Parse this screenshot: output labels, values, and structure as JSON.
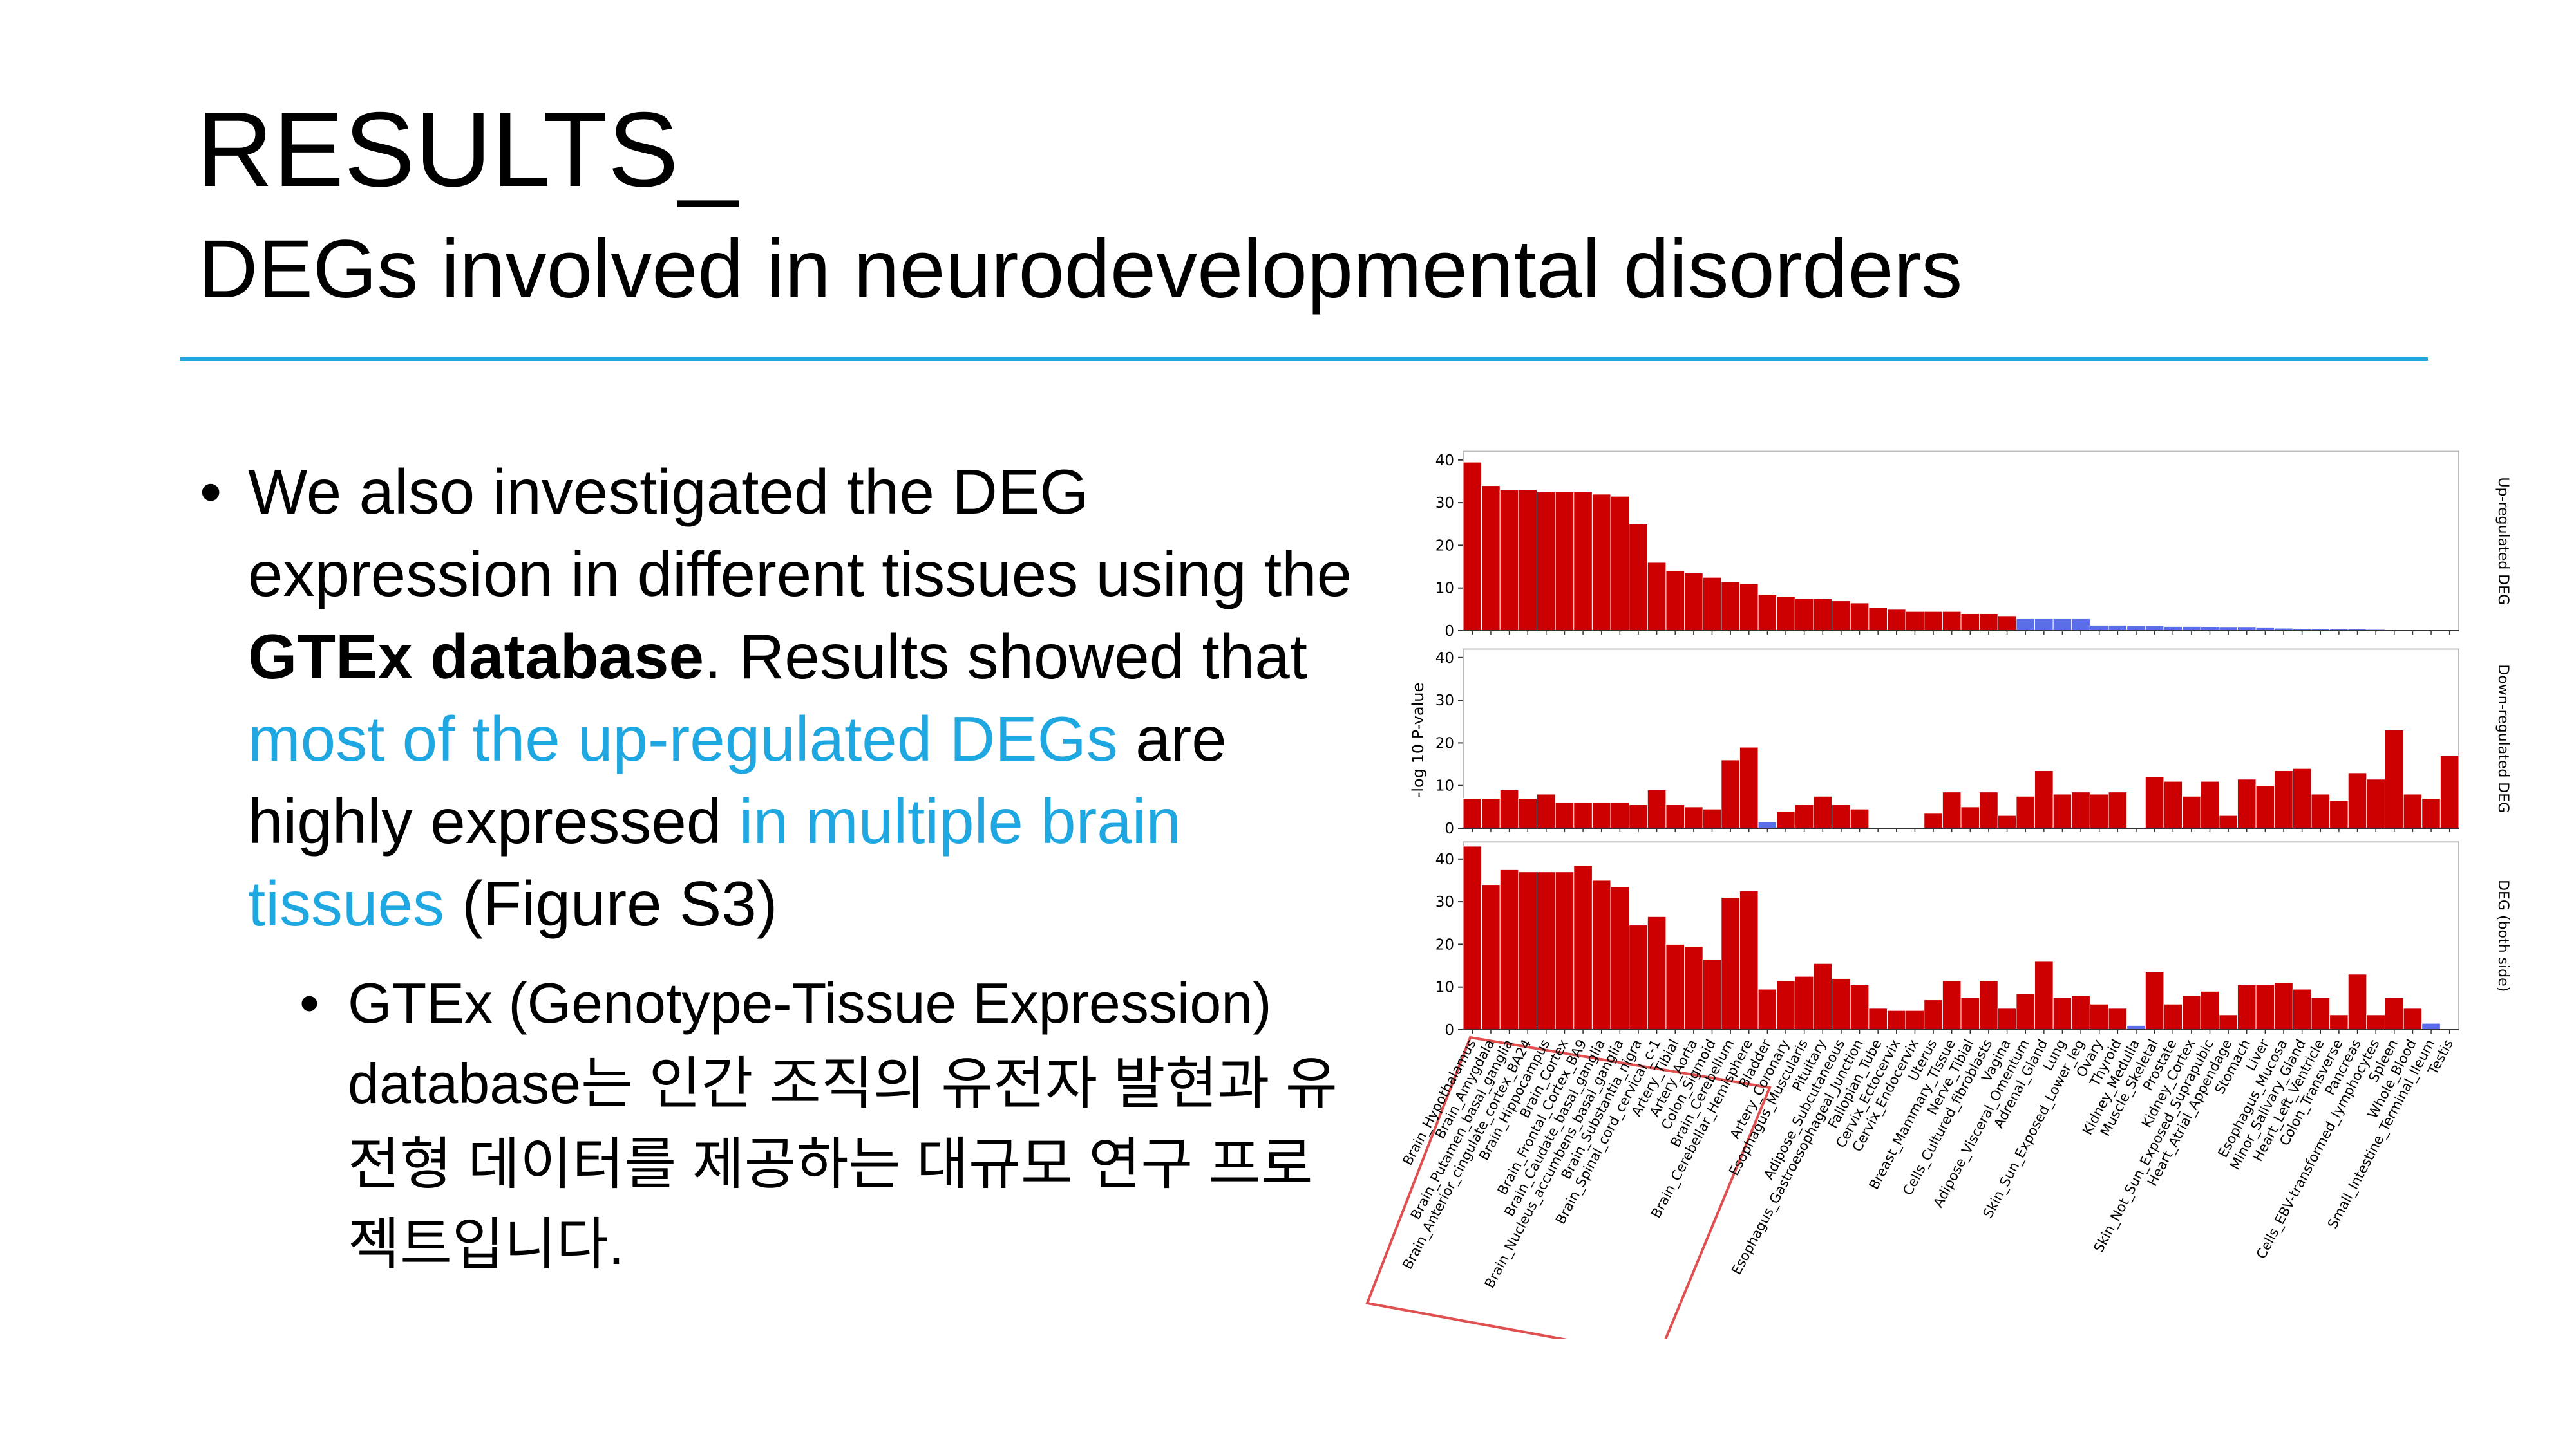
{
  "header": {
    "title": "RESULTS_",
    "subtitle": "DEGs involved in neurodevelopmental disorders"
  },
  "bullets": [
    {
      "parts": [
        {
          "text": "We also investigated the DEG expression in different tissues using the ",
          "style": "normal"
        },
        {
          "text": "GTEx database",
          "style": "bold"
        },
        {
          "text": ". Results showed that ",
          "style": "normal"
        },
        {
          "text": "most of the up-regulated DEGs",
          "style": "highlight"
        },
        {
          "text": " are highly expressed ",
          "style": "normal"
        },
        {
          "text": "in multiple brain tissues",
          "style": "highlight"
        },
        {
          "text": " (Figure S3)",
          "style": "normal"
        }
      ],
      "sub": [
        "GTEx (Genotype-Tissue Expression) database는 인간 조직의 유전자 발현과 유전형 데이터를 제공하는 대규모 연구 프로젝트입니다."
      ]
    }
  ],
  "figure": {
    "y_label": "-log 10 P-value",
    "categories": [
      "Brain_Hypothalamus",
      "Brain_Amygdala",
      "Brain_Putamen_basal_ganglia",
      "Brain_Anterior_cingulate_cortex_BA24",
      "Brain_Hippocampus",
      "Brain_Cortex",
      "Brain_Frontal_Cortex_BA9",
      "Brain_Caudate_basal_ganglia",
      "Brain_Nucleus_accumbens_basal_ganglia",
      "Brain_Substantia_nigra",
      "Brain_Spinal_cord_cervical_c-1",
      "Artery_Tibial",
      "Artery_Aorta",
      "Colon_Sigmoid",
      "Brain_Cerebellum",
      "Brain_Cerebellar_Hemisphere",
      "Bladder",
      "Artery_Coronary",
      "Esophagus_Muscularis",
      "Pituitary",
      "Adipose_Subcutaneous",
      "Esophagus_Gastroesophageal_Junction",
      "Fallopian_Tube",
      "Cervix_Ectocervix",
      "Cervix_Endocervix",
      "Uterus",
      "Breast_Mammary_Tissue",
      "Nerve_Tibial",
      "Cells_Cultured_fibroblasts",
      "Vagina",
      "Adipose_Visceral_Omentum",
      "Adrenal_Gland",
      "Lung",
      "Skin_Sun_Exposed_Lower_leg",
      "Ovary",
      "Thyroid",
      "Kidney_Medulla",
      "Muscle_Skeletal",
      "Prostate",
      "Kidney_Cortex",
      "Skin_Not_Sun_Exposed_Suprapubic",
      "Heart_Atrial_Appendage",
      "Stomach",
      "Liver",
      "Esophagus_Mucosa",
      "Minor_Salivary_Gland",
      "Heart_Left_Ventricle",
      "Colon_Transverse",
      "Pancreas",
      "Cells_EBV-transformed_lymphocytes",
      "Spleen",
      "Whole_Blood",
      "Small_Intestine_Terminal_Ileum",
      "Testis"
    ],
    "charts": [
      {
        "type": "bar",
        "title": "Up-regulated DEG",
        "ylim": [
          0,
          42
        ],
        "yticks": [
          0,
          10,
          20,
          30,
          40
        ],
        "values": [
          39.5,
          34,
          33,
          33,
          32.5,
          32.5,
          32.5,
          32,
          31.5,
          25,
          16,
          14,
          13.5,
          12.5,
          11.5,
          11,
          8.5,
          8,
          7.5,
          7.5,
          7,
          6.5,
          5.5,
          5,
          4.5,
          4.5,
          4.5,
          4,
          4,
          3.5,
          2.8,
          2.8,
          2.8,
          2.8,
          1.3,
          1.3,
          1.2,
          1.2,
          1,
          1,
          0.9,
          0.8,
          0.8,
          0.7,
          0.6,
          0.5,
          0.5,
          0.4,
          0.4,
          0.3,
          0.2,
          0.2,
          0.1,
          0.1
        ],
        "colors": [
          "#cc0000",
          "#cc0000",
          "#cc0000",
          "#cc0000",
          "#cc0000",
          "#cc0000",
          "#cc0000",
          "#cc0000",
          "#cc0000",
          "#cc0000",
          "#cc0000",
          "#cc0000",
          "#cc0000",
          "#cc0000",
          "#cc0000",
          "#cc0000",
          "#cc0000",
          "#cc0000",
          "#cc0000",
          "#cc0000",
          "#cc0000",
          "#cc0000",
          "#cc0000",
          "#cc0000",
          "#cc0000",
          "#cc0000",
          "#cc0000",
          "#cc0000",
          "#cc0000",
          "#cc0000",
          "#5b6ee8",
          "#5b6ee8",
          "#5b6ee8",
          "#5b6ee8",
          "#5b6ee8",
          "#5b6ee8",
          "#5b6ee8",
          "#5b6ee8",
          "#5b6ee8",
          "#5b6ee8",
          "#5b6ee8",
          "#5b6ee8",
          "#5b6ee8",
          "#5b6ee8",
          "#5b6ee8",
          "#5b6ee8",
          "#5b6ee8",
          "#5b6ee8",
          "#5b6ee8",
          "#5b6ee8",
          "#5b6ee8",
          "#5b6ee8",
          "#5b6ee8",
          "#5b6ee8"
        ]
      },
      {
        "type": "bar",
        "title": "Down-regulated DEG",
        "ylim": [
          0,
          42
        ],
        "yticks": [
          0,
          10,
          20,
          30,
          40
        ],
        "values": [
          7,
          7,
          9,
          7,
          8,
          6,
          6,
          6,
          6,
          5.5,
          9,
          5.5,
          5,
          4.5,
          16,
          19,
          1.5,
          4,
          5.5,
          7.5,
          5.5,
          4.5,
          0,
          0,
          0,
          3.5,
          8.5,
          5,
          8.5,
          3,
          7.5,
          13.5,
          8,
          8.5,
          8,
          8.5,
          0,
          12,
          11,
          7.5,
          11,
          3,
          11.5,
          10,
          13.5,
          14,
          8,
          6.5,
          13,
          11.5,
          23,
          8,
          7,
          17
        ],
        "colors": [
          "#cc0000",
          "#cc0000",
          "#cc0000",
          "#cc0000",
          "#cc0000",
          "#cc0000",
          "#cc0000",
          "#cc0000",
          "#cc0000",
          "#cc0000",
          "#cc0000",
          "#cc0000",
          "#cc0000",
          "#cc0000",
          "#cc0000",
          "#cc0000",
          "#5b6ee8",
          "#cc0000",
          "#cc0000",
          "#cc0000",
          "#cc0000",
          "#cc0000",
          "#cc0000",
          "#cc0000",
          "#cc0000",
          "#cc0000",
          "#cc0000",
          "#cc0000",
          "#cc0000",
          "#cc0000",
          "#cc0000",
          "#cc0000",
          "#cc0000",
          "#cc0000",
          "#cc0000",
          "#cc0000",
          "#cc0000",
          "#cc0000",
          "#cc0000",
          "#cc0000",
          "#cc0000",
          "#cc0000",
          "#cc0000",
          "#cc0000",
          "#cc0000",
          "#cc0000",
          "#cc0000",
          "#cc0000",
          "#cc0000",
          "#cc0000",
          "#cc0000",
          "#cc0000",
          "#cc0000",
          "#cc0000"
        ]
      },
      {
        "type": "bar",
        "title": "DEG (both side)",
        "ylim": [
          0,
          44
        ],
        "yticks": [
          0,
          10,
          20,
          30,
          40
        ],
        "values": [
          43,
          34,
          37.5,
          37,
          37,
          37,
          38.5,
          35,
          33.5,
          24.5,
          26.5,
          20,
          19.5,
          16.5,
          31,
          32.5,
          9.5,
          11.5,
          12.5,
          15.5,
          12,
          10.5,
          5,
          4.5,
          4.5,
          7,
          11.5,
          7.5,
          11.5,
          5,
          8.5,
          16,
          7.5,
          8,
          6,
          5,
          1,
          13.5,
          6,
          8,
          9,
          3.5,
          10.5,
          10.5,
          11,
          9.5,
          7.5,
          3.5,
          13,
          3.5,
          7.5,
          5,
          1.5,
          0
        ],
        "colors": [
          "#cc0000",
          "#cc0000",
          "#cc0000",
          "#cc0000",
          "#cc0000",
          "#cc0000",
          "#cc0000",
          "#cc0000",
          "#cc0000",
          "#cc0000",
          "#cc0000",
          "#cc0000",
          "#cc0000",
          "#cc0000",
          "#cc0000",
          "#cc0000",
          "#cc0000",
          "#cc0000",
          "#cc0000",
          "#cc0000",
          "#cc0000",
          "#cc0000",
          "#cc0000",
          "#cc0000",
          "#cc0000",
          "#cc0000",
          "#cc0000",
          "#cc0000",
          "#cc0000",
          "#cc0000",
          "#cc0000",
          "#cc0000",
          "#cc0000",
          "#cc0000",
          "#cc0000",
          "#cc0000",
          "#5b6ee8",
          "#cc0000",
          "#cc0000",
          "#cc0000",
          "#cc0000",
          "#cc0000",
          "#cc0000",
          "#cc0000",
          "#cc0000",
          "#cc0000",
          "#cc0000",
          "#cc0000",
          "#cc0000",
          "#cc0000",
          "#cc0000",
          "#cc0000",
          "#5b6ee8",
          "#cc0000"
        ]
      }
    ]
  }
}
